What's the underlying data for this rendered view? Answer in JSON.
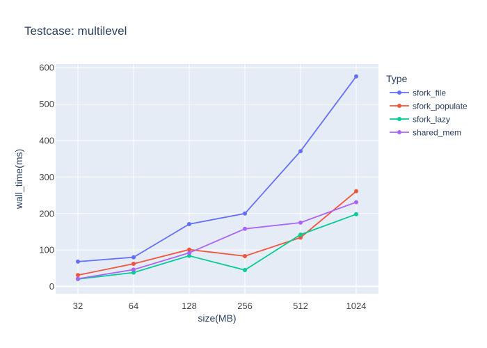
{
  "chart_data": {
    "type": "line",
    "title": "Testcase: multilevel",
    "xlabel": "size(MB)",
    "ylabel": "wall_time(ms)",
    "x_scale": "log2",
    "categories": [
      32,
      64,
      128,
      256,
      512,
      1024
    ],
    "x_tick_labels": [
      "32",
      "64",
      "128",
      "256",
      "512",
      "1024"
    ],
    "ylim": [
      -20,
      610
    ],
    "y_ticks": [
      0,
      100,
      200,
      300,
      400,
      500,
      600
    ],
    "y_tick_labels": [
      "0",
      "100",
      "200",
      "300",
      "400",
      "500",
      "600"
    ],
    "grid": true,
    "legend_title": "Type",
    "legend_position": "right",
    "series": [
      {
        "name": "sfork_file",
        "color": "#636efa",
        "values": [
          68,
          80,
          171,
          200,
          371,
          576
        ]
      },
      {
        "name": "sfork_populate",
        "color": "#ef553b",
        "values": [
          31,
          62,
          101,
          83,
          134,
          261
        ]
      },
      {
        "name": "sfork_lazy",
        "color": "#00cc96",
        "values": [
          20,
          38,
          84,
          45,
          142,
          198
        ]
      },
      {
        "name": "shared_mem",
        "color": "#ab63fa",
        "values": [
          21,
          46,
          92,
          158,
          175,
          231
        ]
      }
    ],
    "colors": {
      "plot_background": "#e5ecf6",
      "grid": "#ffffff",
      "text": "#2a3f5f",
      "tick_text": "#444444"
    }
  }
}
